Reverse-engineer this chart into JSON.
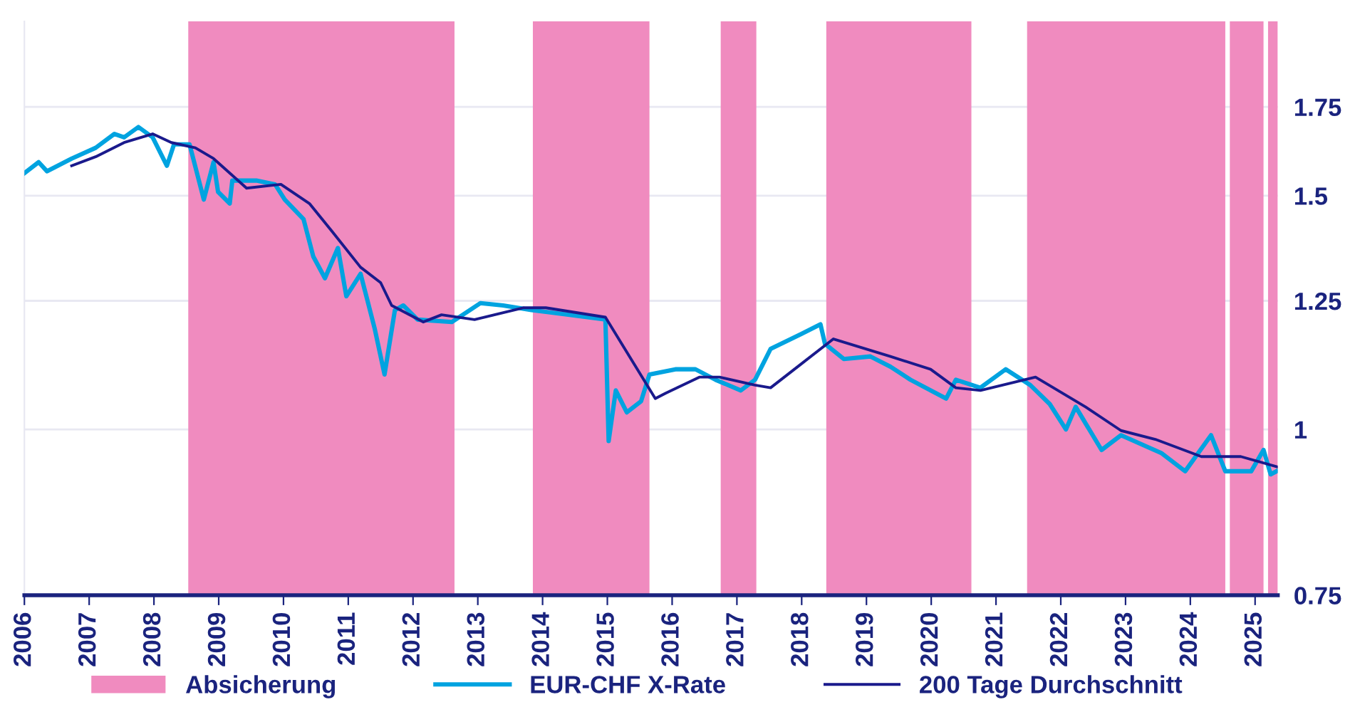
{
  "chart_data": {
    "type": "line",
    "xlim": [
      2006,
      2025.35
    ],
    "xticks": [
      2006,
      2007,
      2008,
      2009,
      2010,
      2011,
      2012,
      2013,
      2014,
      2015,
      2016,
      2017,
      2018,
      2019,
      2020,
      2021,
      2022,
      2023,
      2024,
      2025
    ],
    "ylim": [
      0.75,
      2.03
    ],
    "yticks": [
      0.75,
      1,
      1.25,
      1.5,
      1.75
    ],
    "log": "y",
    "grid": "y",
    "legend": "bottom",
    "bands": [
      {
        "axis": "x",
        "from": 2008.53,
        "to": 2012.64,
        "label": "Absicherung",
        "color": "#f08bbf"
      },
      {
        "axis": "x",
        "from": 2013.85,
        "to": 2015.65,
        "color": "#f08bbf"
      },
      {
        "axis": "x",
        "from": 2016.75,
        "to": 2017.3,
        "color": "#f08bbf"
      },
      {
        "axis": "x",
        "from": 2018.38,
        "to": 2020.62,
        "color": "#f08bbf"
      },
      {
        "axis": "x",
        "from": 2021.48,
        "to": 2024.54,
        "color": "#f08bbf"
      },
      {
        "axis": "x",
        "from": 2024.61,
        "to": 2025.13,
        "color": "#f08bbf"
      },
      {
        "axis": "x",
        "from": 2025.2,
        "to": 2025.35,
        "color": "#f08bbf"
      }
    ],
    "series": [
      {
        "name": "EUR-CHF X-Rate",
        "color": "#00a3e0",
        "x": [
          2006.0,
          2006.22,
          2006.35,
          2006.73,
          2007.1,
          2007.39,
          2007.54,
          2007.76,
          2007.98,
          2008.2,
          2008.31,
          2008.55,
          2008.77,
          2008.92,
          2008.99,
          2009.17,
          2009.21,
          2009.58,
          2009.87,
          2010.02,
          2010.31,
          2010.46,
          2010.64,
          2010.84,
          2010.97,
          2011.19,
          2011.41,
          2011.56,
          2011.72,
          2011.85,
          2012.07,
          2012.6,
          2013.04,
          2013.39,
          2013.83,
          2014.42,
          2014.97,
          2015.02,
          2015.13,
          2015.3,
          2015.52,
          2015.65,
          2016.05,
          2016.36,
          2016.67,
          2017.06,
          2017.28,
          2017.52,
          2017.99,
          2018.29,
          2018.36,
          2018.65,
          2019.06,
          2019.37,
          2019.68,
          2020.23,
          2020.38,
          2020.76,
          2021.15,
          2021.53,
          2021.83,
          2022.08,
          2022.23,
          2022.63,
          2022.93,
          2023.55,
          2023.92,
          2024.32,
          2024.54,
          2024.94,
          2025.13,
          2025.24,
          2025.33
        ],
        "values": [
          1.56,
          1.59,
          1.565,
          1.6,
          1.63,
          1.67,
          1.66,
          1.69,
          1.66,
          1.58,
          1.64,
          1.64,
          1.49,
          1.59,
          1.51,
          1.48,
          1.54,
          1.54,
          1.53,
          1.49,
          1.44,
          1.35,
          1.3,
          1.37,
          1.26,
          1.31,
          1.19,
          1.1,
          1.23,
          1.24,
          1.21,
          1.205,
          1.245,
          1.24,
          1.23,
          1.22,
          1.21,
          0.98,
          1.07,
          1.03,
          1.05,
          1.1,
          1.11,
          1.11,
          1.09,
          1.07,
          1.09,
          1.15,
          1.18,
          1.2,
          1.16,
          1.13,
          1.135,
          1.115,
          1.09,
          1.055,
          1.09,
          1.075,
          1.11,
          1.08,
          1.045,
          1.0,
          1.04,
          0.965,
          0.99,
          0.96,
          0.93,
          0.99,
          0.93,
          0.93,
          0.965,
          0.925,
          0.93
        ]
      },
      {
        "name": "200 Tage Durchschnitt",
        "color": "#1a1a8c",
        "x": [
          2006.73,
          2007.1,
          2007.54,
          2007.98,
          2008.27,
          2008.64,
          2008.92,
          2009.43,
          2009.96,
          2010.4,
          2010.75,
          2011.19,
          2011.5,
          2011.67,
          2012.16,
          2012.44,
          2012.95,
          2013.7,
          2014.05,
          2014.97,
          2015.74,
          2015.9,
          2016.42,
          2016.73,
          2017.28,
          2017.52,
          2017.99,
          2018.49,
          2019.37,
          2019.99,
          2020.38,
          2020.76,
          2021.61,
          2022.38,
          2022.93,
          2023.46,
          2024.17,
          2024.78,
          2025.35
        ],
        "values": [
          1.58,
          1.605,
          1.645,
          1.67,
          1.645,
          1.63,
          1.6,
          1.52,
          1.53,
          1.48,
          1.41,
          1.325,
          1.29,
          1.24,
          1.205,
          1.22,
          1.21,
          1.235,
          1.235,
          1.215,
          1.055,
          1.065,
          1.095,
          1.095,
          1.08,
          1.075,
          1.12,
          1.17,
          1.135,
          1.11,
          1.075,
          1.07,
          1.095,
          1.04,
          0.998,
          0.983,
          0.954,
          0.954,
          0.937
        ]
      }
    ]
  }
}
